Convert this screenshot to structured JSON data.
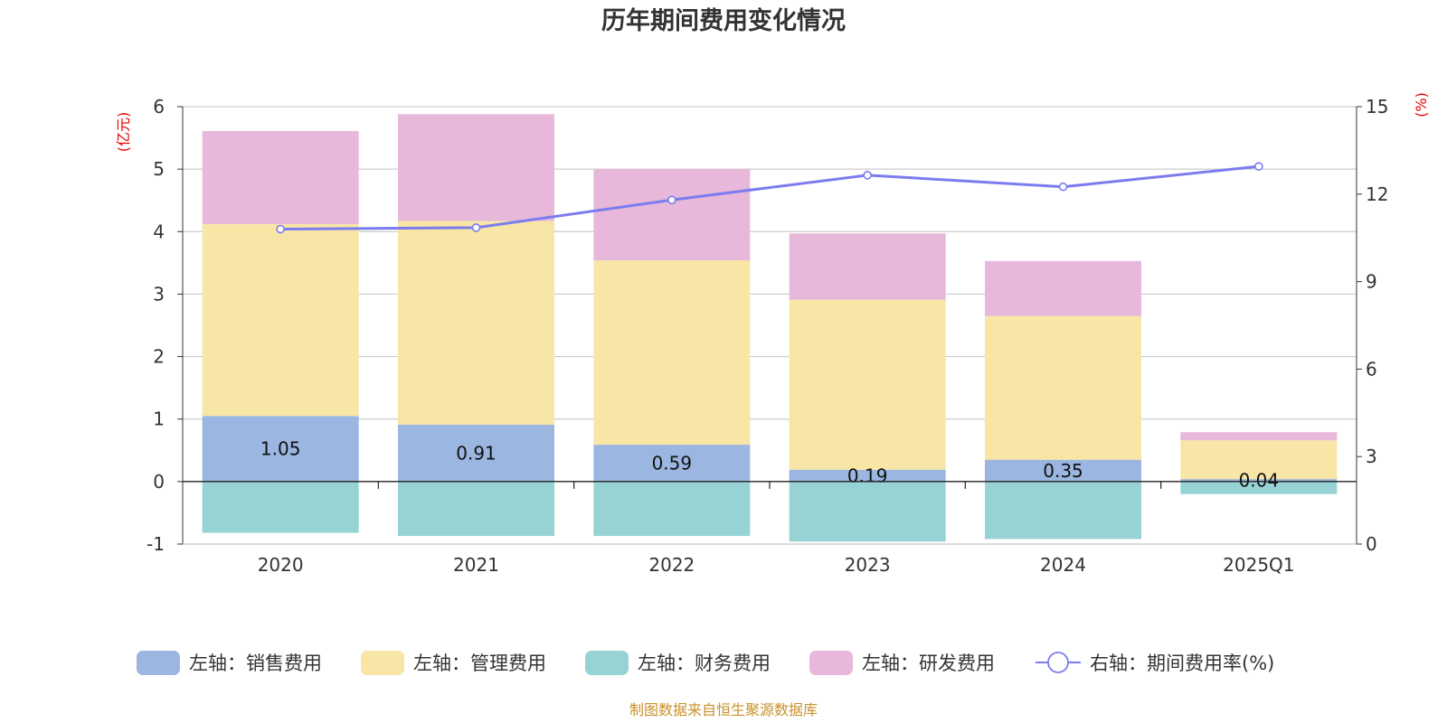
{
  "chart_data": {
    "type": "bar",
    "stacked": true,
    "title": "历年期间费用变化情况",
    "categories": [
      "2020",
      "2021",
      "2022",
      "2023",
      "2024",
      "2025Q1"
    ],
    "left_axis": {
      "unit_label": "(亿元)",
      "ylim": [
        -1,
        6
      ],
      "ticks": [
        "-1",
        "0",
        "1",
        "2",
        "3",
        "4",
        "5",
        "6"
      ]
    },
    "right_axis": {
      "unit_label": "(%)",
      "ylim": [
        0,
        15
      ],
      "ticks": [
        "0",
        "3",
        "6",
        "9",
        "12",
        "15"
      ]
    },
    "series": [
      {
        "name": "左轴：销售费用",
        "color": "#9bb6e0",
        "axis": "left",
        "values": [
          1.05,
          0.91,
          0.59,
          0.19,
          0.35,
          0.04
        ],
        "labels": [
          "1.05",
          "0.91",
          "0.59",
          "0.19",
          "0.35",
          "0.04"
        ]
      },
      {
        "name": "左轴：管理费用",
        "color": "#f8e6a6",
        "axis": "left",
        "values": [
          3.07,
          3.26,
          2.95,
          2.72,
          2.3,
          0.62
        ]
      },
      {
        "name": "左轴：财务费用",
        "color": "#97d3d4",
        "axis": "left",
        "values": [
          -0.82,
          -0.87,
          -0.87,
          -0.96,
          -0.92,
          -0.2
        ]
      },
      {
        "name": "左轴：研发费用",
        "color": "#e7b8d9",
        "axis": "left",
        "values": [
          1.49,
          1.71,
          1.46,
          1.06,
          0.88,
          0.13
        ]
      },
      {
        "name": "右轴：期间费用率(%)",
        "type": "line",
        "color": "#7b7cef",
        "axis": "right",
        "values": [
          10.8,
          10.85,
          11.8,
          12.65,
          12.25,
          12.95
        ]
      }
    ]
  },
  "footer": {
    "source": "制图数据来自恒生聚源数据库"
  }
}
